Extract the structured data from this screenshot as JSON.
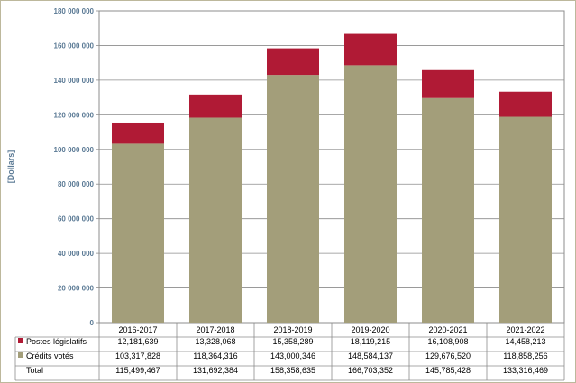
{
  "chart_data": {
    "type": "bar",
    "stacked": true,
    "title": "",
    "xlabel": "",
    "ylabel": "[Dollars]",
    "ylim": [
      0,
      180000000
    ],
    "yticks": [
      0,
      20000000,
      40000000,
      60000000,
      80000000,
      100000000,
      120000000,
      140000000,
      160000000,
      180000000
    ],
    "ytick_labels": [
      "0",
      "20 000 000",
      "40 000 000",
      "60 000 000",
      "80 000 000",
      "100 000 000",
      "120 000 000",
      "140 000 000",
      "160 000 000",
      "180 000 000"
    ],
    "categories": [
      "2016-2017",
      "2017-2018",
      "2018-2019",
      "2019-2020",
      "2020-2021",
      "2021-2022"
    ],
    "series": [
      {
        "name": "Crédits votés",
        "color": "#a39e7a",
        "values": [
          103317828,
          118364316,
          143000346,
          148584137,
          129676520,
          118858256
        ],
        "labels": [
          "103,317,828",
          "118,364,316",
          "143,000,346",
          "148,584,137",
          "129,676,520",
          "118,858,256"
        ]
      },
      {
        "name": "Postes législatifs",
        "color": "#b01a35",
        "values": [
          12181639,
          13328068,
          15358289,
          18119215,
          16108908,
          14458213
        ],
        "labels": [
          "12,181,639",
          "13,328,068",
          "15,358,289",
          "18,119,215",
          "16,108,908",
          "14,458,213"
        ]
      }
    ],
    "total": {
      "name": "Total",
      "labels": [
        "115,499,467",
        "131,692,384",
        "158,358,635",
        "166,703,352",
        "145,785,428",
        "133,316,469"
      ]
    },
    "grid": true
  }
}
